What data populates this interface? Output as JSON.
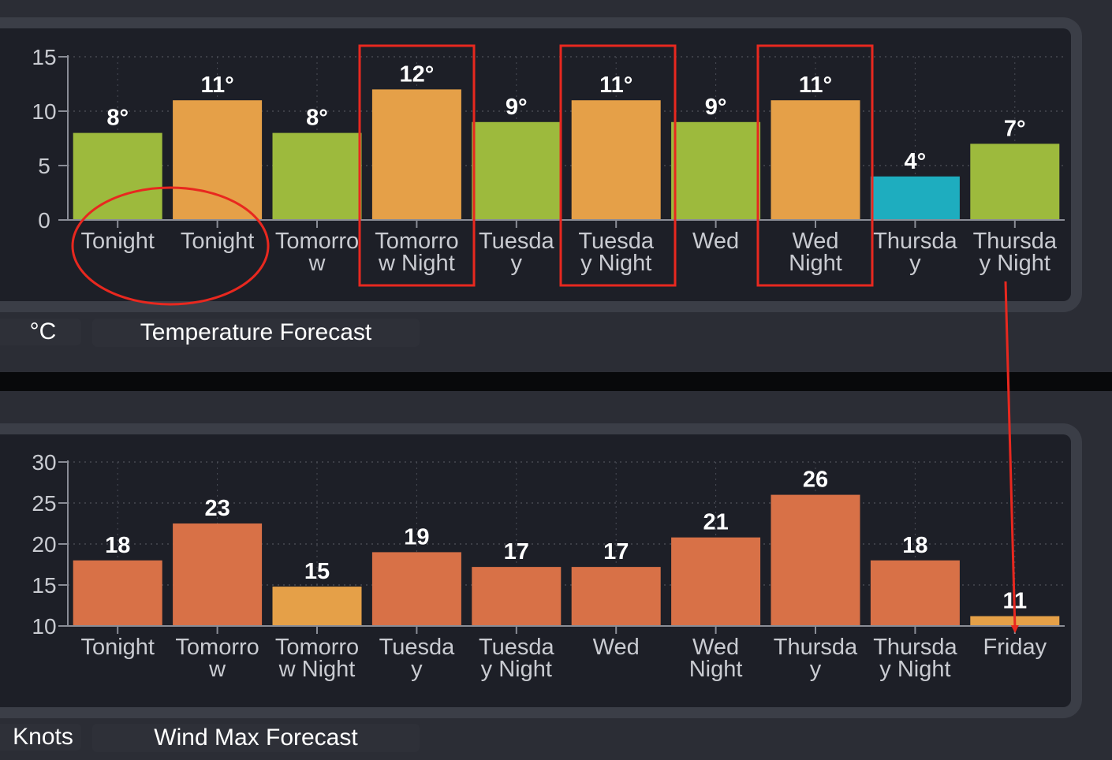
{
  "charts": [
    {
      "unit_label": "°C",
      "title_label": "Temperature Forecast"
    },
    {
      "unit_label": "Knots",
      "title_label": "Wind Max Forecast"
    }
  ],
  "chart_data": [
    {
      "type": "bar",
      "title": "Temperature Forecast",
      "ylabel": "°C",
      "categories": [
        "Tonight",
        "Tonight",
        "Tomorrow",
        "Tomorrow Night",
        "Tuesday",
        "Tuesday Night",
        "Wed",
        "Wed Night",
        "Thursday",
        "Thursday Night"
      ],
      "category_lines": [
        [
          "Tonight"
        ],
        [
          "Tonight"
        ],
        [
          "Tomorro",
          "w"
        ],
        [
          "Tomorro",
          "w Night"
        ],
        [
          "Tuesda",
          "y"
        ],
        [
          "Tuesda",
          "y Night"
        ],
        [
          "Wed"
        ],
        [
          "Wed",
          "Night"
        ],
        [
          "Thursda",
          "y"
        ],
        [
          "Thursda",
          "y Night"
        ]
      ],
      "values": [
        8,
        11,
        8,
        12,
        9,
        11,
        9,
        11,
        4,
        7
      ],
      "value_labels": [
        "8°",
        "11°",
        "8°",
        "12°",
        "9°",
        "11°",
        "9°",
        "11°",
        "4°",
        "7°"
      ],
      "bar_colors": [
        "#9dba3d",
        "#e5a048",
        "#9dba3d",
        "#e5a048",
        "#9dba3d",
        "#e5a048",
        "#9dba3d",
        "#e5a048",
        "#1eadbf",
        "#9dba3d"
      ],
      "ylim": [
        0,
        15
      ],
      "yticks": [
        "0",
        "5",
        "10",
        "15"
      ],
      "ytick_values": [
        0,
        5,
        10,
        15
      ],
      "grid": true
    },
    {
      "type": "bar",
      "title": "Wind Max Forecast",
      "ylabel": "Knots",
      "categories": [
        "Tonight",
        "Tomorrow",
        "Tomorrow Night",
        "Tuesday",
        "Tuesday Night",
        "Wed",
        "Wed Night",
        "Thursday",
        "Thursday Night",
        "Friday"
      ],
      "category_lines": [
        [
          "Tonight"
        ],
        [
          "Tomorro",
          "w"
        ],
        [
          "Tomorro",
          "w Night"
        ],
        [
          "Tuesda",
          "y"
        ],
        [
          "Tuesda",
          "y Night"
        ],
        [
          "Wed"
        ],
        [
          "Wed",
          "Night"
        ],
        [
          "Thursda",
          "y"
        ],
        [
          "Thursda",
          "y Night"
        ],
        [
          "Friday"
        ]
      ],
      "values": [
        18,
        22.5,
        14.8,
        19,
        17.2,
        17.2,
        20.8,
        26,
        18,
        11.2
      ],
      "value_labels": [
        "18",
        "23",
        "15",
        "19",
        "17",
        "17",
        "21",
        "26",
        "18",
        "11"
      ],
      "bar_colors": [
        "#d87147",
        "#d87147",
        "#e5a048",
        "#d87147",
        "#d87147",
        "#d87147",
        "#d87147",
        "#d87147",
        "#d87147",
        "#e5a048"
      ],
      "ylim": [
        10,
        30
      ],
      "yticks": [
        "10",
        "15",
        "20",
        "25",
        "30"
      ],
      "ytick_values": [
        10,
        15,
        20,
        25,
        30
      ],
      "grid": true
    }
  ],
  "annotations": {
    "stroke_color": "#e8281f",
    "ellipse_target": "duplicate Tonight labels",
    "boxed_categories": [
      "Tomorrow Night",
      "Tuesday Night",
      "Wed Night"
    ],
    "arrow": "from Thursday Night (temperature) to Friday (wind)"
  }
}
